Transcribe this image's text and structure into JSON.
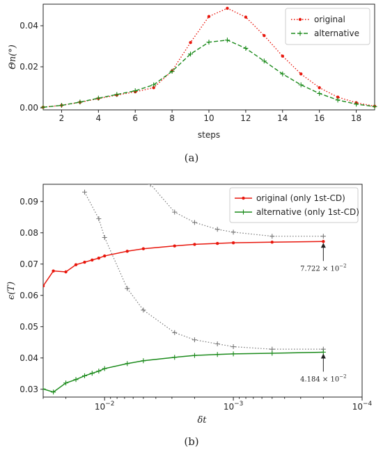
{
  "chart_data": [
    {
      "type": "line",
      "xlabel": "steps",
      "ylabel": "Θn(°)",
      "xlim": [
        1,
        19
      ],
      "ylim": [
        -0.001,
        0.0505
      ],
      "xticks": [
        2,
        4,
        6,
        8,
        10,
        12,
        14,
        16,
        18
      ],
      "yticks": [
        0.0,
        0.02,
        0.04
      ],
      "ytick_labels": [
        "0.00",
        "0.02",
        "0.04"
      ],
      "legend_position": "top-right",
      "caption": "(a)",
      "series": [
        {
          "name": "original",
          "color": "#e8160c",
          "style": "dotted",
          "marker": "dot",
          "x": [
            1,
            2,
            3,
            4,
            5,
            6,
            7,
            8,
            9,
            10,
            11,
            12,
            13,
            14,
            15,
            16,
            17,
            18,
            19
          ],
          "y": [
            0.0003,
            0.0012,
            0.0027,
            0.0045,
            0.0062,
            0.0078,
            0.0098,
            0.018,
            0.0318,
            0.0445,
            0.0485,
            0.0442,
            0.0352,
            0.0252,
            0.0165,
            0.0098,
            0.0052,
            0.0025,
            0.0008
          ]
        },
        {
          "name": "alternative",
          "color": "#1a8a1a",
          "style": "dashed",
          "marker": "plus",
          "x": [
            1,
            2,
            3,
            4,
            5,
            6,
            7,
            8,
            9,
            10,
            11,
            12,
            13,
            14,
            15,
            16,
            17,
            18,
            19
          ],
          "y": [
            0.0003,
            0.0012,
            0.0028,
            0.0047,
            0.0065,
            0.0083,
            0.0112,
            0.0178,
            0.0262,
            0.032,
            0.033,
            0.029,
            0.0228,
            0.0165,
            0.0112,
            0.007,
            0.0038,
            0.0018,
            0.0006
          ]
        }
      ]
    },
    {
      "type": "line",
      "xlabel": "δt",
      "ylabel": "ϵ(T)",
      "xscale": "log-reversed",
      "xlim": [
        0.03,
        0.0001
      ],
      "ylim": [
        0.0275,
        0.0955
      ],
      "yticks": [
        0.03,
        0.04,
        0.05,
        0.06,
        0.07,
        0.08,
        0.09
      ],
      "ytick_labels": [
        "0.03",
        "0.04",
        "0.05",
        "0.06",
        "0.07",
        "0.08",
        "0.09"
      ],
      "xticks": [
        {
          "value": 0.01,
          "base": "10",
          "exp": "−2"
        },
        {
          "value": 0.001,
          "base": "10",
          "exp": "−3"
        },
        {
          "value": 0.0001,
          "base": "10",
          "exp": "−4"
        }
      ],
      "legend_position": "top-right",
      "caption": "(b)",
      "annotations": [
        {
          "mantissa": "7.722 × 10",
          "exp": "−2",
          "x": 0.0002,
          "y": 0.07722
        },
        {
          "mantissa": "4.184 × 10",
          "exp": "−2",
          "x": 0.0002,
          "y": 0.04184
        }
      ],
      "series": [
        {
          "name": "original (only 1st-CD)",
          "color": "#e8160c",
          "style": "solid",
          "marker": "dot",
          "x": [
            0.03,
            0.025,
            0.02,
            0.0167,
            0.0143,
            0.0125,
            0.0111,
            0.01,
            0.00667,
            0.005,
            0.00286,
            0.002,
            0.00133,
            0.001,
            0.0005,
            0.0002
          ],
          "y": [
            0.063,
            0.0678,
            0.0675,
            0.0698,
            0.0706,
            0.0713,
            0.0719,
            0.0726,
            0.0741,
            0.0749,
            0.0758,
            0.0763,
            0.0766,
            0.0768,
            0.077,
            0.07722
          ]
        },
        {
          "name": "alternative (only 1st-CD)",
          "color": "#1a8a1a",
          "style": "solid",
          "marker": "plus",
          "x": [
            0.03,
            0.025,
            0.02,
            0.0167,
            0.0143,
            0.0125,
            0.0111,
            0.01,
            0.00667,
            0.005,
            0.00286,
            0.002,
            0.00133,
            0.001,
            0.0005,
            0.0002
          ],
          "y": [
            0.0301,
            0.0291,
            0.032,
            0.0331,
            0.0343,
            0.0351,
            0.0358,
            0.0366,
            0.0382,
            0.0391,
            0.0402,
            0.0408,
            0.0411,
            0.0413,
            0.0415,
            0.04184
          ]
        },
        {
          "name": "",
          "color": "#777777",
          "style": "dotted",
          "marker": "plus",
          "x": [
            0.0143,
            0.0111,
            0.01,
            0.00667,
            0.005,
            0.00286,
            0.002,
            0.00133,
            0.001,
            0.0005,
            0.0002
          ],
          "y": [
            0.093,
            0.0845,
            0.0785,
            0.0622,
            0.0553,
            0.0481,
            0.0458,
            0.0445,
            0.0436,
            0.0428,
            0.0428
          ]
        },
        {
          "name": "",
          "color": "#777777",
          "style": "dotted",
          "marker": "plus",
          "x": [
            0.0044,
            0.00286,
            0.002,
            0.00133,
            0.001,
            0.0005,
            0.0002
          ],
          "y": [
            0.0955,
            0.0866,
            0.0833,
            0.0811,
            0.0802,
            0.0789,
            0.0789
          ]
        }
      ]
    }
  ]
}
